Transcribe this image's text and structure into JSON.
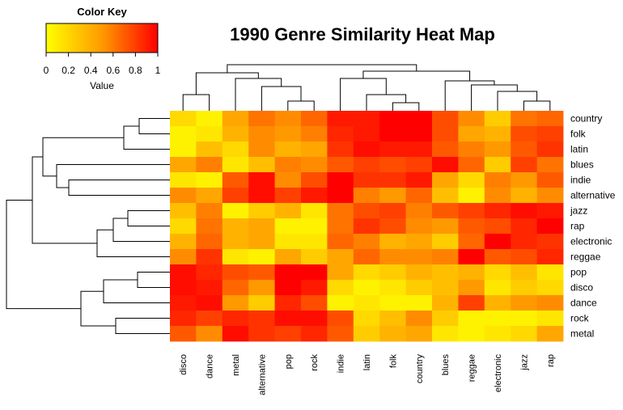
{
  "chart_data": {
    "type": "heatmap",
    "title": "1990 Genre Similarity Heat Map",
    "color_key": {
      "title": "Color Key",
      "axis_label": "Value",
      "ticks": [
        "0",
        "0.2",
        "0.4",
        "0.6",
        "0.8",
        "1"
      ],
      "range": [
        0,
        1
      ],
      "low_color": "#ffff00",
      "high_color": "#ff0000"
    },
    "rows": [
      "country",
      "folk",
      "latin",
      "blues",
      "indie",
      "alternative",
      "jazz",
      "rap",
      "electronic",
      "reggae",
      "pop",
      "disco",
      "dance",
      "rock",
      "metal"
    ],
    "columns": [
      "disco",
      "dance",
      "metal",
      "alternative",
      "pop",
      "rock",
      "indie",
      "latin",
      "folk",
      "country",
      "blues",
      "reggae",
      "electronic",
      "jazz",
      "rap"
    ],
    "values": [
      [
        0.15,
        0.05,
        0.35,
        0.55,
        0.45,
        0.6,
        0.9,
        0.9,
        1.0,
        1.0,
        0.7,
        0.45,
        0.2,
        0.55,
        0.6
      ],
      [
        0.05,
        0.1,
        0.3,
        0.45,
        0.4,
        0.5,
        0.85,
        0.9,
        1.0,
        1.0,
        0.7,
        0.35,
        0.3,
        0.7,
        0.75
      ],
      [
        0.05,
        0.25,
        0.15,
        0.45,
        0.3,
        0.35,
        0.8,
        0.95,
        0.9,
        0.9,
        0.65,
        0.5,
        0.4,
        0.65,
        0.8
      ],
      [
        0.35,
        0.5,
        0.1,
        0.25,
        0.5,
        0.45,
        0.65,
        0.75,
        0.7,
        0.75,
        0.95,
        0.6,
        0.2,
        0.75,
        0.55
      ],
      [
        0.1,
        0.05,
        0.65,
        0.95,
        0.45,
        0.7,
        1.0,
        0.8,
        0.8,
        0.9,
        0.35,
        0.15,
        0.5,
        0.4,
        0.65
      ],
      [
        0.45,
        0.35,
        0.75,
        0.95,
        0.75,
        0.9,
        1.0,
        0.5,
        0.4,
        0.6,
        0.25,
        0.05,
        0.45,
        0.3,
        0.45
      ],
      [
        0.25,
        0.5,
        0.05,
        0.2,
        0.3,
        0.1,
        0.55,
        0.7,
        0.75,
        0.5,
        0.65,
        0.75,
        0.85,
        0.95,
        0.9
      ],
      [
        0.15,
        0.55,
        0.3,
        0.35,
        0.05,
        0.05,
        0.55,
        0.8,
        0.7,
        0.45,
        0.4,
        0.65,
        0.7,
        0.85,
        1.0
      ],
      [
        0.3,
        0.6,
        0.3,
        0.35,
        0.1,
        0.1,
        0.6,
        0.5,
        0.3,
        0.35,
        0.2,
        0.6,
        1.0,
        0.85,
        0.8
      ],
      [
        0.45,
        0.8,
        0.1,
        0.05,
        0.35,
        0.2,
        0.35,
        0.6,
        0.45,
        0.45,
        0.5,
        1.0,
        0.65,
        0.7,
        0.85
      ],
      [
        0.95,
        0.85,
        0.7,
        0.65,
        1.0,
        1.0,
        0.35,
        0.15,
        0.2,
        0.3,
        0.25,
        0.3,
        0.15,
        0.25,
        0.1
      ],
      [
        0.95,
        0.9,
        0.6,
        0.4,
        1.0,
        0.9,
        0.15,
        0.05,
        0.1,
        0.2,
        0.25,
        0.4,
        0.1,
        0.2,
        0.15
      ],
      [
        0.9,
        0.95,
        0.4,
        0.2,
        0.85,
        0.7,
        0.05,
        0.1,
        0.05,
        0.05,
        0.3,
        0.75,
        0.3,
        0.4,
        0.45
      ],
      [
        0.85,
        0.75,
        0.85,
        0.8,
        0.95,
        0.95,
        0.7,
        0.15,
        0.25,
        0.45,
        0.2,
        0.05,
        0.05,
        0.05,
        0.1
      ],
      [
        0.65,
        0.45,
        0.95,
        0.8,
        0.75,
        0.85,
        0.65,
        0.2,
        0.3,
        0.35,
        0.1,
        0.05,
        0.1,
        0.15,
        0.35
      ]
    ],
    "legend": "top-left"
  }
}
